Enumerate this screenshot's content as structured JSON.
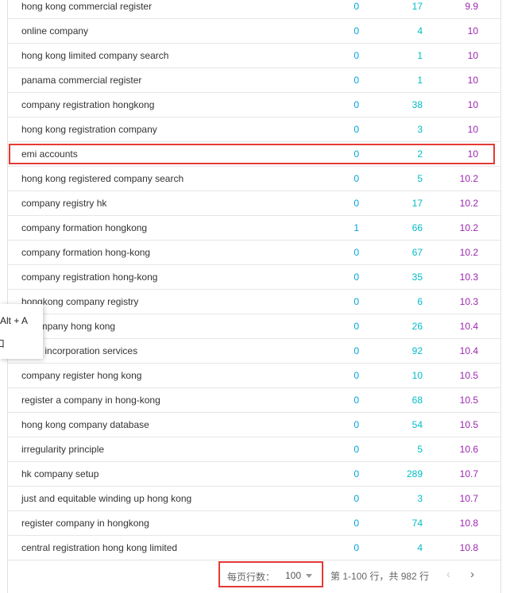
{
  "table": {
    "rows": [
      {
        "keyword": "hong kong commercial register",
        "col1": "0",
        "col2": "17",
        "col3": "9.9"
      },
      {
        "keyword": "online company",
        "col1": "0",
        "col2": "4",
        "col3": "10"
      },
      {
        "keyword": "hong kong limited company search",
        "col1": "0",
        "col2": "1",
        "col3": "10"
      },
      {
        "keyword": "panama commercial register",
        "col1": "0",
        "col2": "1",
        "col3": "10"
      },
      {
        "keyword": "company registration hongkong",
        "col1": "0",
        "col2": "38",
        "col3": "10"
      },
      {
        "keyword": "hong kong registration company",
        "col1": "0",
        "col2": "3",
        "col3": "10"
      },
      {
        "keyword": "emi accounts",
        "col1": "0",
        "col2": "2",
        "col3": "10",
        "highlighted": true
      },
      {
        "keyword": "hong kong registered company search",
        "col1": "0",
        "col2": "5",
        "col3": "10.2"
      },
      {
        "keyword": "company registry hk",
        "col1": "0",
        "col2": "17",
        "col3": "10.2"
      },
      {
        "keyword": "company formation hongkong",
        "col1": "1",
        "col2": "66",
        "col3": "10.2"
      },
      {
        "keyword": "company formation hong-kong",
        "col1": "0",
        "col2": "67",
        "col3": "10.2"
      },
      {
        "keyword": "company registration hong-kong",
        "col1": "0",
        "col2": "35",
        "col3": "10.3"
      },
      {
        "keyword": "hongkong company registry",
        "col1": "0",
        "col2": "6",
        "col3": "10.3"
      },
      {
        "keyword": "e company hong kong",
        "col1": "0",
        "col2": "26",
        "col3": "10.4"
      },
      {
        "keyword": "kong incorporation services",
        "col1": "0",
        "col2": "92",
        "col3": "10.4"
      },
      {
        "keyword": "company register hong kong",
        "col1": "0",
        "col2": "10",
        "col3": "10.5"
      },
      {
        "keyword": "register a company in hong-kong",
        "col1": "0",
        "col2": "68",
        "col3": "10.5"
      },
      {
        "keyword": "hong kong company database",
        "col1": "0",
        "col2": "54",
        "col3": "10.5"
      },
      {
        "keyword": "irregularity principle",
        "col1": "0",
        "col2": "5",
        "col3": "10.6"
      },
      {
        "keyword": "hk company setup",
        "col1": "0",
        "col2": "289",
        "col3": "10.7"
      },
      {
        "keyword": "just and equitable winding up hong kong",
        "col1": "0",
        "col2": "3",
        "col3": "10.7"
      },
      {
        "keyword": "register company in hongkong",
        "col1": "0",
        "col2": "74",
        "col3": "10.8"
      },
      {
        "keyword": "central registration hong kong limited",
        "col1": "0",
        "col2": "4",
        "col3": "10.8"
      }
    ]
  },
  "footer": {
    "rows_per_page_label": "每页行数：",
    "rows_per_page_value": "100",
    "range_text": "第 1-100 行，共 982 行",
    "prev_icon": "‹",
    "next_icon": "›"
  },
  "context_menu": {
    "item1": "Alt + A",
    "item2": "口"
  },
  "colors": {
    "col1": "#00a3d6",
    "col2": "#00bcc7",
    "col3": "#9c27b0",
    "highlight": "#e53935"
  }
}
